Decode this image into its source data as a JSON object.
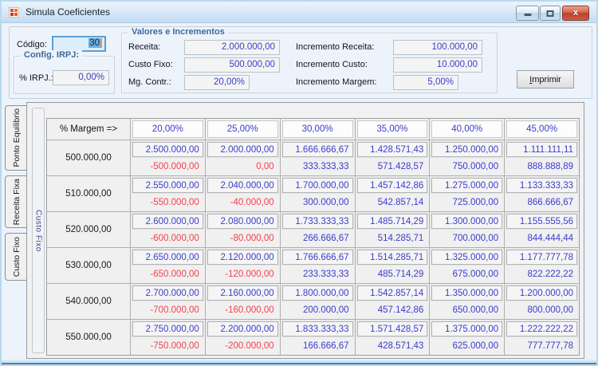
{
  "window": {
    "title": "Simula Coeficientes"
  },
  "form": {
    "codigo_label": "Código:",
    "codigo_value": "30",
    "irpj_group": {
      "title": "Config. IRPJ:",
      "label": "% IRPJ.:",
      "value": "0,00%"
    },
    "valores_group": {
      "title": "Valores e Incrementos",
      "left_fields": [
        {
          "label": "Receita:",
          "value": "2.000.000,00"
        },
        {
          "label": "Custo Fixo:",
          "value": "500.000,00"
        },
        {
          "label": "Mg. Contr.:",
          "value": "20,00%"
        }
      ],
      "right_fields": [
        {
          "label": "Incremento Receita:",
          "value": "100.000,00"
        },
        {
          "label": "Incremento Custo:",
          "value": "10.000,00"
        },
        {
          "label": "Incremento Margem:",
          "value": "5,00%"
        }
      ]
    },
    "print_button_label": "Imprimir"
  },
  "side_tabs": [
    {
      "label": "Ponto Equilibrio",
      "active": true
    },
    {
      "label": "Receita Fixa",
      "active": false
    },
    {
      "label": "Custo Fixo",
      "active": false
    }
  ],
  "row_axis_label": "Custo Fixo",
  "table": {
    "corner_label": "% Margem =>",
    "margin_headers": [
      "20,00%",
      "25,00%",
      "30,00%",
      "35,00%",
      "40,00%",
      "45,00%"
    ],
    "rows": [
      {
        "custo_fixo": "500.000,00",
        "receita_necessaria": [
          "2.500.000,00",
          "2.000.000,00",
          "1.666.666,67",
          "1.428.571,43",
          "1.250.000,00",
          "1.111.111,11"
        ],
        "resultado": [
          "-500.000,00",
          "0,00",
          "333.333,33",
          "571.428,57",
          "750.000,00",
          "888.888,89"
        ]
      },
      {
        "custo_fixo": "510.000,00",
        "receita_necessaria": [
          "2.550.000,00",
          "2.040.000,00",
          "1.700.000,00",
          "1.457.142,86",
          "1.275.000,00",
          "1.133.333,33"
        ],
        "resultado": [
          "-550.000,00",
          "-40.000,00",
          "300.000,00",
          "542.857,14",
          "725.000,00",
          "866.666,67"
        ]
      },
      {
        "custo_fixo": "520.000,00",
        "receita_necessaria": [
          "2.600.000,00",
          "2.080.000,00",
          "1.733.333,33",
          "1.485.714,29",
          "1.300.000,00",
          "1.155.555,56"
        ],
        "resultado": [
          "-600.000,00",
          "-80.000,00",
          "266.666,67",
          "514.285,71",
          "700.000,00",
          "844.444,44"
        ]
      },
      {
        "custo_fixo": "530.000,00",
        "receita_necessaria": [
          "2.650.000,00",
          "2.120.000,00",
          "1.766.666,67",
          "1.514.285,71",
          "1.325.000,00",
          "1.177.777,78"
        ],
        "resultado": [
          "-650.000,00",
          "-120.000,00",
          "233.333,33",
          "485.714,29",
          "675.000,00",
          "822.222,22"
        ]
      },
      {
        "custo_fixo": "540.000,00",
        "receita_necessaria": [
          "2.700.000,00",
          "2.160.000,00",
          "1.800.000,00",
          "1.542.857,14",
          "1.350.000,00",
          "1.200.000,00"
        ],
        "resultado": [
          "-700.000,00",
          "-160.000,00",
          "200.000,00",
          "457.142,86",
          "650.000,00",
          "800.000,00"
        ]
      },
      {
        "custo_fixo": "550.000,00",
        "receita_necessaria": [
          "2.750.000,00",
          "2.200.000,00",
          "1.833.333,33",
          "1.571.428,57",
          "1.375.000,00",
          "1.222.222,22"
        ],
        "resultado": [
          "-750.000,00",
          "-200.000,00",
          "166.666,67",
          "428.571,43",
          "625.000,00",
          "777.777,78"
        ]
      }
    ]
  },
  "colors": {
    "value_blue": "#3c3ccd",
    "negative_red": "#f2414e",
    "group_title_blue": "#40699b"
  }
}
